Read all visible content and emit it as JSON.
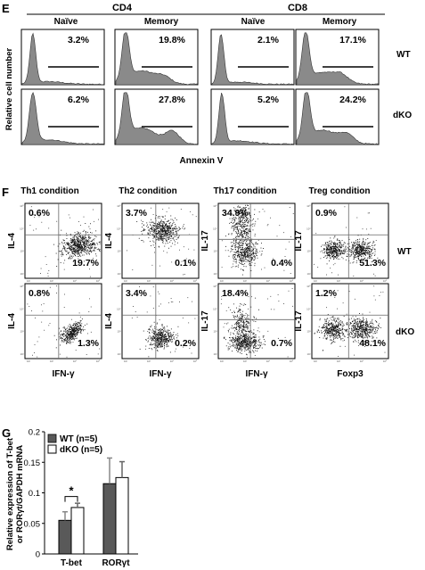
{
  "panelE": {
    "label": "E",
    "groups": [
      "CD4",
      "CD8"
    ],
    "cols": [
      "Naïve",
      "Memory",
      "Naïve",
      "Memory"
    ],
    "rows": [
      "WT",
      "dKO"
    ],
    "ylabel": "Relative cell number",
    "xlabel": "Annexin V",
    "values": [
      [
        "3.2%",
        "19.8%",
        "2.1%",
        "17.1%"
      ],
      [
        "6.2%",
        "27.8%",
        "5.2%",
        "24.2%"
      ]
    ]
  },
  "panelF": {
    "label": "F",
    "conditions": [
      "Th1 condition",
      "Th2 condition",
      "Th17 condition",
      "Treg condition"
    ],
    "ylabels": [
      [
        "IL-4",
        "IL-4"
      ],
      [
        "IL-4",
        "IL-4"
      ],
      [
        "IL-17",
        "IL-17"
      ],
      [
        "IL-17",
        "IL-17"
      ]
    ],
    "xlabels": [
      "IFN-γ",
      "IFN-γ",
      "IFN-γ",
      "Foxp3"
    ],
    "rows": [
      "WT",
      "dKO"
    ],
    "ticks": [
      "10²",
      "10³",
      "10⁴",
      "10⁵"
    ],
    "quadrants": [
      [
        [
          "0.6%",
          "19.7%"
        ],
        [
          "0.8%",
          "1.3%"
        ]
      ],
      [
        [
          "3.7%",
          "0.1%"
        ],
        [
          "3.4%",
          "0.2%"
        ]
      ],
      [
        [
          "34.9%",
          "0.4%"
        ],
        [
          "18.4%",
          "0.7%"
        ]
      ],
      [
        [
          "0.9%",
          "51.3%"
        ],
        [
          "1.2%",
          "48.1%"
        ]
      ]
    ]
  },
  "panelG": {
    "label": "G",
    "significance": "*",
    "legend": [
      "WT (n=5)",
      "dKO (n=5)"
    ],
    "ylabel_lines": [
      "Relative expression of T-bet",
      "or RORγt/GAPDH mRNA"
    ],
    "colors": {
      "wt": "#595959",
      "dko": "#ffffff"
    },
    "chart_data": {
      "type": "bar",
      "categories": [
        "T-bet",
        "RORγt"
      ],
      "series": [
        {
          "name": "WT (n=5)",
          "values": [
            0.055,
            0.115
          ],
          "errors": [
            0.014,
            0.042
          ]
        },
        {
          "name": "dKO (n=5)",
          "values": [
            0.076,
            0.125
          ],
          "errors": [
            0.007,
            0.026
          ]
        }
      ],
      "yticks": [
        "0",
        "0.05",
        "0.1",
        "0.15",
        "0.2"
      ],
      "ylim": [
        0,
        0.2
      ]
    }
  }
}
